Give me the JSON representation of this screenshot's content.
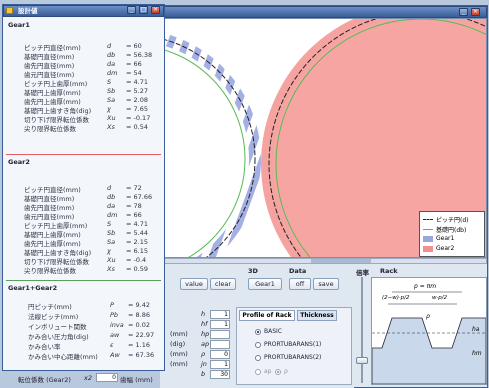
{
  "main_window": {
    "plot_legend": [
      {
        "label": "ピッチ円(d)",
        "color": "#222222"
      },
      {
        "label": "基礎円(db)",
        "color": "#55bb55"
      },
      {
        "label": "Gear1",
        "color": "#9aa6e0"
      },
      {
        "label": "Gear2",
        "color": "#f09090"
      }
    ]
  },
  "toolbar": {
    "value": "value",
    "clear": "clear",
    "group_3d": "3D",
    "gear1": "Gear1",
    "group_data": "Data",
    "off": "off",
    "save": "save",
    "scale": "倍率",
    "rack": "Rack"
  },
  "params": {
    "rows": [
      {
        "sym": "h",
        "unit": "",
        "value": "1"
      },
      {
        "sym": "hf",
        "unit": "",
        "value": "1"
      },
      {
        "sym": "hp",
        "unit": "(mm)",
        "value": ""
      },
      {
        "sym": "ap",
        "unit": "(dig)",
        "value": ""
      },
      {
        "sym": "ρ",
        "unit": "(mm)",
        "value": "0"
      },
      {
        "sym": "jn",
        "unit": "(mm)",
        "value": "1"
      },
      {
        "sym": "b",
        "unit": "",
        "value": "30"
      }
    ],
    "shift_label": "転位係数 (Gear2)",
    "shift_sym": "x2",
    "shift_value": "0",
    "width_label": "歯幅 (mm)"
  },
  "profile": {
    "tab_profile": "Profile of Rack",
    "tab_thickness": "Thickness",
    "options": [
      "BASIC",
      "PRORTUBARANS(1)",
      "PRORTUBARANS(2)"
    ],
    "small": [
      "ap",
      "ρ"
    ]
  },
  "rack_diagram": {
    "p": "p = πm",
    "left": "(2−w)·p/2",
    "right": "w·p/2",
    "ha": "ha",
    "hm": "hm",
    "rho": "ρ"
  },
  "dialog": {
    "title": "設計値",
    "gear1": {
      "title": "Gear1",
      "rows": [
        {
          "name": "ピッチ円直径(mm)",
          "sym": "d",
          "val": "= 60"
        },
        {
          "name": "基礎円直径(mm)",
          "sym": "db",
          "val": "= 56.38"
        },
        {
          "name": "歯先円直径(mm)",
          "sym": "da",
          "val": "= 66"
        },
        {
          "name": "歯元円直径(mm)",
          "sym": "dm",
          "val": "= 54"
        },
        {
          "name": "ピッチ円上歯厚(mm)",
          "sym": "S",
          "val": "= 4.71"
        },
        {
          "name": "基礎円上歯厚(mm)",
          "sym": "Sb",
          "val": "= 5.27"
        },
        {
          "name": "歯先円上歯厚(mm)",
          "sym": "Sa",
          "val": "= 2.08"
        },
        {
          "name": "基礎円上歯すき角(dig)",
          "sym": "χ",
          "val": "= 7.65"
        },
        {
          "name": "切り下げ限界転位係数",
          "sym": "Xu",
          "val": "= -0.17"
        },
        {
          "name": "尖り限界転位係数",
          "sym": "Xs",
          "val": "= 0.54"
        }
      ]
    },
    "gear2": {
      "title": "Gear2",
      "rows": [
        {
          "name": "ピッチ円直径(mm)",
          "sym": "d",
          "val": "= 72"
        },
        {
          "name": "基礎円直径(mm)",
          "sym": "db",
          "val": "= 67.66"
        },
        {
          "name": "歯先円直径(mm)",
          "sym": "da",
          "val": "= 78"
        },
        {
          "name": "歯元円直径(mm)",
          "sym": "dm",
          "val": "= 66"
        },
        {
          "name": "ピッチ円上歯厚(mm)",
          "sym": "S",
          "val": "= 4.71"
        },
        {
          "name": "基礎円上歯厚(mm)",
          "sym": "Sb",
          "val": "= 5.44"
        },
        {
          "name": "歯先円上歯厚(mm)",
          "sym": "Sa",
          "val": "= 2.15"
        },
        {
          "name": "基礎円上歯すき角(dig)",
          "sym": "χ",
          "val": "= 6.15"
        },
        {
          "name": "切り下げ限界転位係数",
          "sym": "Xu",
          "val": "= -0.4"
        },
        {
          "name": "尖り限界転位係数",
          "sym": "Xs",
          "val": "= 0.59"
        }
      ]
    },
    "pair": {
      "title": "Gear1+Gear2",
      "rows": [
        {
          "name": "円ピッチ(mm)",
          "sym": "P",
          "val": "= 9.42"
        },
        {
          "name": "法線ピッチ(mm)",
          "sym": "Pb",
          "val": "= 8.86"
        },
        {
          "name": "インボリュート関数",
          "sym": "inva",
          "val": "= 0.02"
        },
        {
          "name": "かみ合い圧力角(dig)",
          "sym": "aw",
          "val": "= 22.97"
        },
        {
          "name": "かみ合い率",
          "sym": "ε",
          "val": "= 1.16"
        },
        {
          "name": "かみ合い中心距離(mm)",
          "sym": "Aw",
          "val": "= 67.36"
        }
      ]
    }
  }
}
